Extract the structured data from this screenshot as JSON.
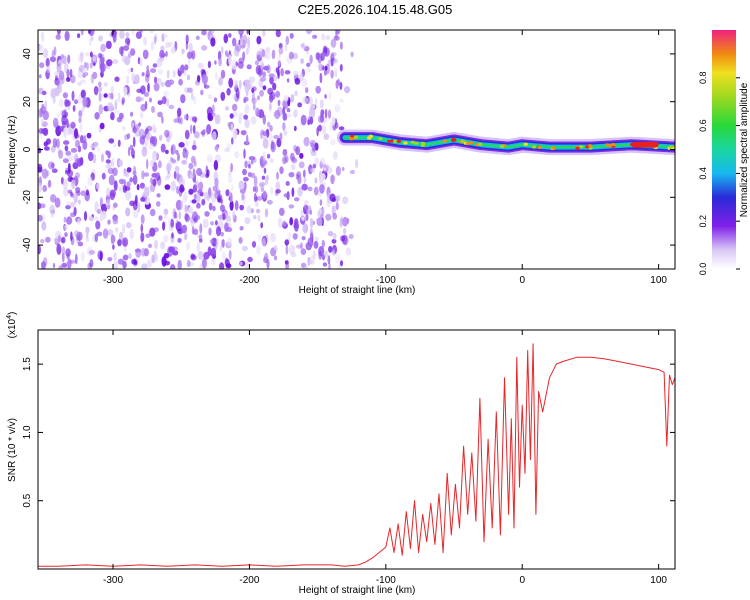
{
  "page_title": "C2E5.2026.104.15.48.G05",
  "colors": {
    "line": "#e8262a",
    "frame": "#000000",
    "background": "#ffffff"
  },
  "chart_data": [
    {
      "type": "heatmap",
      "title": "C2E5.2026.104.15.48.G05",
      "xlabel": "Height of straight line (km)",
      "ylabel": "Frequency (Hz)",
      "xlim": [
        -355,
        112
      ],
      "ylim": [
        -50,
        50
      ],
      "xticks": [
        "-300",
        "-200",
        "-100",
        "0",
        "100"
      ],
      "yticks": [
        "-40",
        "-20",
        "0",
        "20",
        "40"
      ],
      "noise_region_x": [
        -355,
        -120
      ],
      "signal_region_x": [
        -130,
        112
      ],
      "signal_centerline": {
        "x": [
          -130,
          -110,
          -90,
          -70,
          -50,
          -30,
          -10,
          0,
          20,
          50,
          80,
          112
        ],
        "y": [
          5,
          5,
          3,
          2,
          4,
          2,
          1,
          2,
          1,
          1,
          2,
          1
        ]
      },
      "peak_region_x": [
        80,
        100
      ],
      "colorbar": {
        "label": "Normalized spectral amplitude",
        "range": [
          0,
          1
        ],
        "ticks": [
          "0.0",
          "0.2",
          "0.4",
          "0.6",
          "0.8"
        ]
      }
    },
    {
      "type": "line",
      "xlabel": "Height of straight line (km)",
      "ylabel": "SNR (10 * v/v)",
      "y_multiplier": "(x10",
      "y_multiplier_exp": "4",
      "y_multiplier_close": ")",
      "xlim": [
        -355,
        112
      ],
      "ylim": [
        0,
        1.75
      ],
      "xticks": [
        "-300",
        "-200",
        "-100",
        "0",
        "100"
      ],
      "yticks": [
        "0.5",
        "1.0",
        "1.5"
      ],
      "series": [
        {
          "name": "SNR",
          "x": [
            -355,
            -340,
            -320,
            -300,
            -280,
            -260,
            -240,
            -220,
            -200,
            -180,
            -160,
            -140,
            -130,
            -120,
            -115,
            -110,
            -105,
            -100,
            -97,
            -94,
            -91,
            -88,
            -85,
            -82,
            -79,
            -76,
            -73,
            -70,
            -67,
            -64,
            -61,
            -58,
            -55,
            -52,
            -49,
            -46,
            -43,
            -40,
            -37,
            -34,
            -31,
            -28,
            -25,
            -22,
            -19,
            -16,
            -13,
            -10,
            -8,
            -6,
            -4,
            -2,
            0,
            2,
            4,
            6,
            8,
            10,
            12,
            15,
            20,
            25,
            30,
            40,
            50,
            60,
            70,
            80,
            90,
            95,
            100,
            104,
            106,
            108,
            110,
            112
          ],
          "y": [
            0.02,
            0.02,
            0.03,
            0.02,
            0.03,
            0.02,
            0.03,
            0.02,
            0.03,
            0.02,
            0.03,
            0.03,
            0.02,
            0.03,
            0.05,
            0.08,
            0.12,
            0.16,
            0.3,
            0.12,
            0.33,
            0.1,
            0.42,
            0.15,
            0.5,
            0.12,
            0.4,
            0.2,
            0.48,
            0.18,
            0.55,
            0.12,
            0.7,
            0.25,
            0.62,
            0.3,
            0.9,
            0.4,
            0.85,
            0.35,
            1.25,
            0.2,
            0.95,
            0.3,
            1.15,
            0.25,
            1.4,
            0.4,
            1.1,
            0.3,
            1.55,
            0.6,
            1.2,
            0.7,
            1.6,
            0.8,
            1.65,
            0.4,
            1.3,
            1.15,
            1.4,
            1.5,
            1.52,
            1.55,
            1.55,
            1.54,
            1.52,
            1.5,
            1.48,
            1.47,
            1.46,
            1.44,
            0.9,
            1.42,
            1.35,
            1.4
          ]
        }
      ]
    }
  ]
}
